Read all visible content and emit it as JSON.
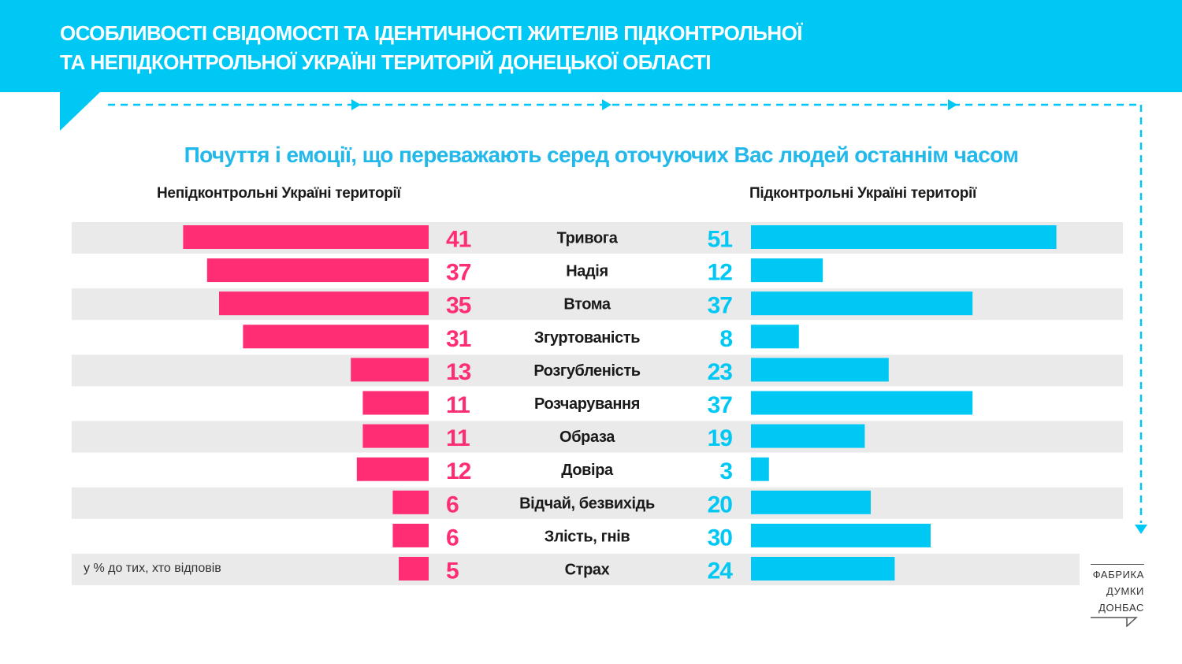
{
  "header": {
    "title_line1": "ОСОБЛИВОСТІ СВІДОМОСТІ ТА ІДЕНТИЧНОСТІ ЖИТЕЛІВ ПІДКОНТРОЛЬНОЇ",
    "title_line2": "ТА НЕПІДКОНТРОЛЬНОЇ УКРАЇНІ ТЕРИТОРІЙ ДОНЕЦЬКОЇ ОБЛАСТІ"
  },
  "colors": {
    "banner": "#00c8f5",
    "left_bar": "#ff2d74",
    "right_bar": "#00c8f5",
    "row_band": "#eaeaea",
    "subtitle": "#22b8ea"
  },
  "note": "у % до тих, хто відповів",
  "logo": {
    "lines": [
      "ФАБРИКА",
      "ДУМКИ",
      "ДОНБАС"
    ]
  },
  "chart_data": {
    "type": "bar",
    "orientation": "horizontal-butterfly",
    "title": "Почуття і емоції, що переважають серед оточуючих Вас людей останнім часом",
    "categories": [
      "Тривога",
      "Надія",
      "Втома",
      "Згуртованість",
      "Розгубленість",
      "Розчарування",
      "Образа",
      "Довіра",
      "Відчай, безвихідь",
      "Злість, гнів",
      "Страх"
    ],
    "series": [
      {
        "name": "Непідконтрольні Україні території",
        "values": [
          41,
          37,
          35,
          31,
          13,
          11,
          11,
          12,
          6,
          6,
          5
        ]
      },
      {
        "name": "Підконтрольні Україні території",
        "values": [
          51,
          12,
          37,
          8,
          23,
          37,
          19,
          3,
          20,
          30,
          24
        ]
      }
    ]
  }
}
